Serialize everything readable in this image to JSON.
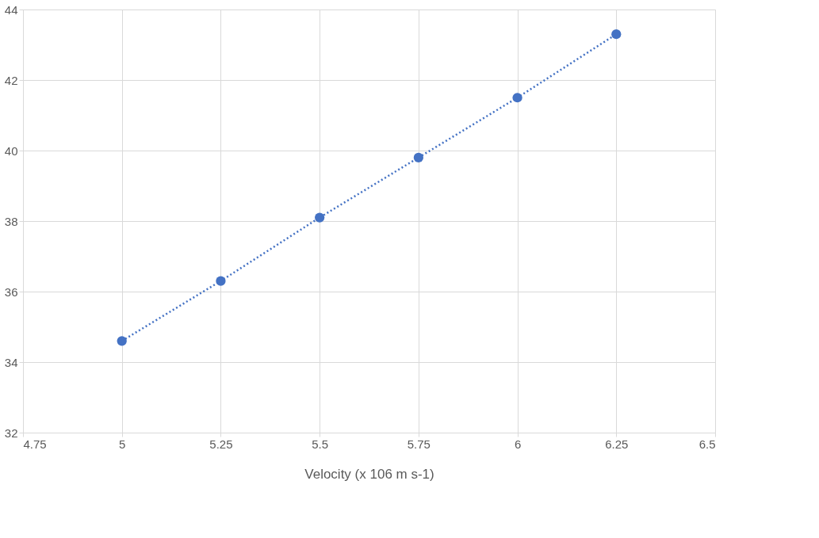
{
  "chart_data": {
    "type": "line",
    "xlabel": "Velocity (x 106 m s-1)",
    "x": [
      5,
      5.25,
      5.5,
      5.75,
      6,
      6.25
    ],
    "series": [
      {
        "color": "#4472c4",
        "values": [
          34.6,
          36.3,
          38.1,
          39.8,
          41.5,
          43.3
        ]
      }
    ],
    "xlim": [
      4.75,
      6.5
    ],
    "xticks": [
      4.75,
      5,
      5.25,
      5.5,
      5.75,
      6,
      6.25,
      6.5
    ],
    "ylim": [
      32,
      44
    ],
    "yticks": [
      32,
      34,
      36,
      38,
      40,
      42,
      44
    ],
    "grid": true,
    "marker": "circle",
    "line_style": "dotted"
  }
}
